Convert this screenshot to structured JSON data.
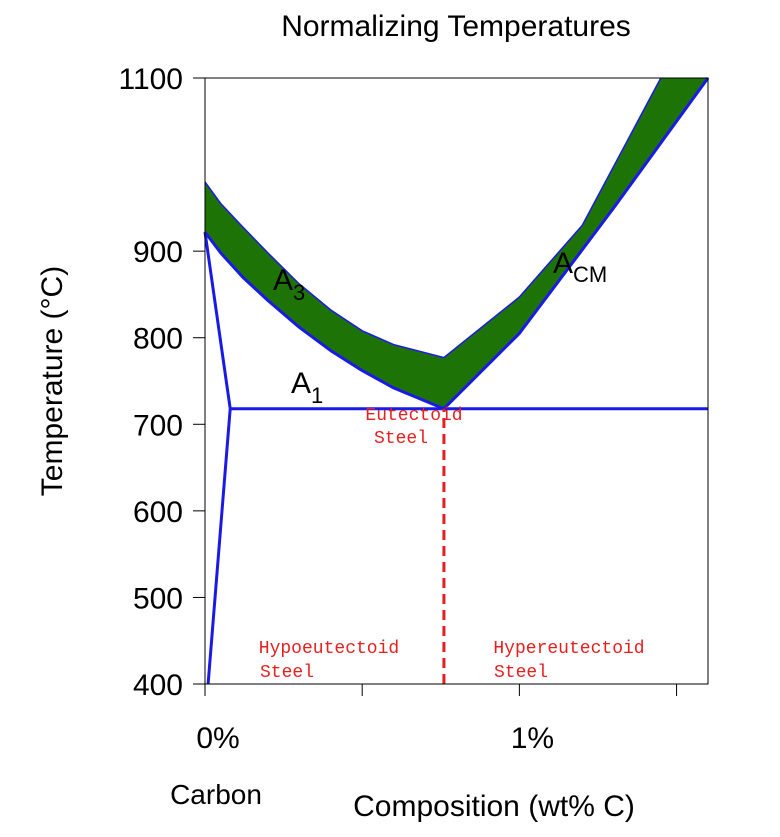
{
  "chart_data": {
    "type": "line",
    "title": "Normalizing Temperatures",
    "ylabel": "Temperature (°C)",
    "xlabel": "Composition (wt% C)",
    "xlabel_secondary": "Carbon",
    "xlim": [
      0,
      1.6
    ],
    "ylim": [
      400,
      1100
    ],
    "y_ticks": [
      {
        "value": 400,
        "label": "400"
      },
      {
        "value": 500,
        "label": "500"
      },
      {
        "value": 600,
        "label": "600"
      },
      {
        "value": 700,
        "label": "700"
      },
      {
        "value": 800,
        "label": "800"
      },
      {
        "value": 900,
        "label": "900"
      },
      {
        "value": 1100,
        "label": "1100"
      }
    ],
    "x_ticks": [
      {
        "value": 0,
        "label": "0%"
      },
      {
        "value": 0.5,
        "label": ""
      },
      {
        "value": 1.0,
        "label": "1%"
      },
      {
        "value": 1.5,
        "label": ""
      }
    ],
    "normalizing_band": {
      "color": "#1e7306",
      "upper": [
        {
          "x": 0,
          "y": 980
        },
        {
          "x": 0.05,
          "y": 955
        },
        {
          "x": 0.12,
          "y": 928
        },
        {
          "x": 0.2,
          "y": 898
        },
        {
          "x": 0.3,
          "y": 862
        },
        {
          "x": 0.4,
          "y": 832
        },
        {
          "x": 0.5,
          "y": 808
        },
        {
          "x": 0.6,
          "y": 792
        },
        {
          "x": 0.76,
          "y": 777
        },
        {
          "x": 1.0,
          "y": 847
        },
        {
          "x": 1.2,
          "y": 930
        },
        {
          "x": 1.45,
          "y": 1100
        }
      ],
      "lower": [
        {
          "x": 0,
          "y": 922
        },
        {
          "x": 0.05,
          "y": 898
        },
        {
          "x": 0.12,
          "y": 870
        },
        {
          "x": 0.2,
          "y": 843
        },
        {
          "x": 0.3,
          "y": 812
        },
        {
          "x": 0.4,
          "y": 785
        },
        {
          "x": 0.5,
          "y": 762
        },
        {
          "x": 0.6,
          "y": 742
        },
        {
          "x": 0.76,
          "y": 718
        },
        {
          "x": 1.0,
          "y": 805
        },
        {
          "x": 1.3,
          "y": 950
        },
        {
          "x": 1.6,
          "y": 1100
        }
      ]
    },
    "lines": [
      {
        "name": "A3",
        "label": "A",
        "subscript": "3",
        "color": "#1a1ae6",
        "points": [
          {
            "x": 0,
            "y": 922
          },
          {
            "x": 0.05,
            "y": 898
          },
          {
            "x": 0.12,
            "y": 870
          },
          {
            "x": 0.2,
            "y": 843
          },
          {
            "x": 0.3,
            "y": 812
          },
          {
            "x": 0.4,
            "y": 785
          },
          {
            "x": 0.5,
            "y": 762
          },
          {
            "x": 0.6,
            "y": 742
          },
          {
            "x": 0.76,
            "y": 718
          }
        ]
      },
      {
        "name": "ACM",
        "label": "A",
        "subscript": "CM",
        "color": "#1a1ae6",
        "points": [
          {
            "x": 0.76,
            "y": 718
          },
          {
            "x": 1.0,
            "y": 805
          },
          {
            "x": 1.3,
            "y": 950
          },
          {
            "x": 1.6,
            "y": 1100
          }
        ]
      },
      {
        "name": "A1",
        "label": "A",
        "subscript": "1",
        "color": "#1a1ae6",
        "points": [
          {
            "x": 0.08,
            "y": 718
          },
          {
            "x": 1.6,
            "y": 718
          }
        ]
      },
      {
        "name": "ferrite-boundary",
        "color": "#1a1ae6",
        "points": [
          {
            "x": 0,
            "y": 922
          },
          {
            "x": 0.08,
            "y": 718
          },
          {
            "x": 0.01,
            "y": 400
          }
        ]
      }
    ],
    "eutectoid_line": {
      "x": 0.76,
      "y_from": 400,
      "y_to": 718,
      "color": "#e62020",
      "dashed": true
    },
    "annotations": [
      {
        "line1": "Eutectoid",
        "line2": "Steel",
        "color": "#e62020"
      },
      {
        "line1": "Hypoeutectoid",
        "line2": "Steel",
        "color": "#e62020"
      },
      {
        "line1": "Hypereutectoid",
        "line2": "Steel",
        "color": "#e62020"
      }
    ]
  }
}
